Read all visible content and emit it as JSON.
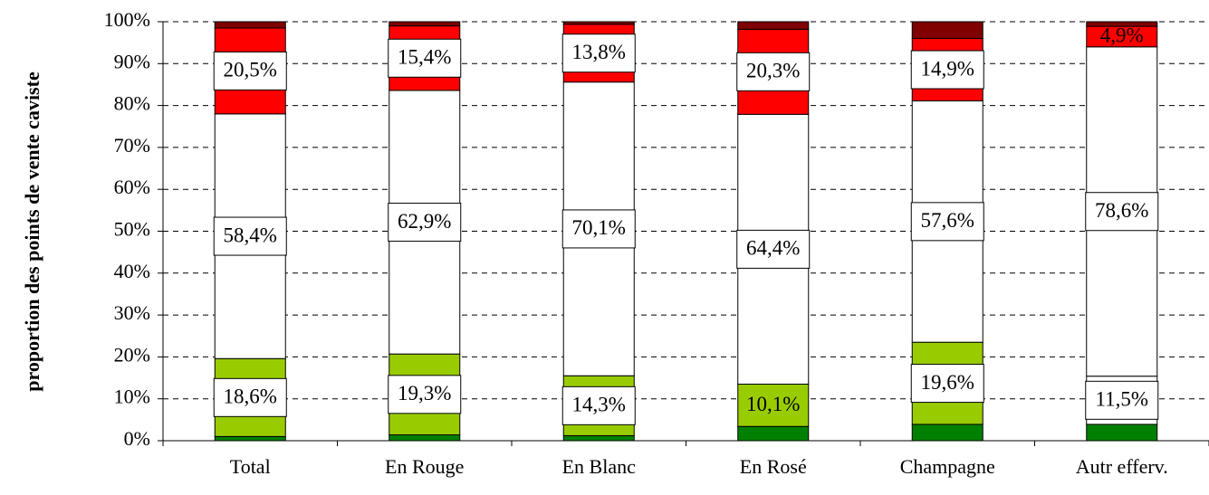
{
  "chart_data": {
    "type": "stacked-bar",
    "y_axis_label": "proportion des points de vente caviste",
    "categories": [
      "Total",
      "En Rouge",
      "En Blanc",
      "En Rosé",
      "Champagne",
      "Autr efferv."
    ],
    "series": [
      {
        "color": "#008000",
        "values": [
          1.0,
          1.4,
          1.2,
          3.4,
          3.9,
          3.9
        ]
      },
      {
        "color": "#99cc00",
        "point_colors": {
          "5": "#ffffff"
        },
        "values": [
          18.6,
          19.3,
          14.3,
          10.1,
          19.6,
          11.5
        ],
        "value_labels": [
          "18,6%",
          "19,3%",
          "14,3%",
          "10,1%",
          "19,6%",
          "11,5%"
        ]
      },
      {
        "color": "#ffffff",
        "values": [
          58.4,
          62.9,
          70.1,
          64.4,
          57.6,
          78.6
        ],
        "value_labels": [
          "58,4%",
          "62,9%",
          "70,1%",
          "64,4%",
          "57,6%",
          "78,6%"
        ]
      },
      {
        "color": "#ff0000",
        "values": [
          20.5,
          15.4,
          13.8,
          20.3,
          14.9,
          4.9
        ],
        "value_labels": [
          "20,5%",
          "15,4%",
          "13,8%",
          "20,3%",
          "14,9%",
          "4,9%"
        ]
      },
      {
        "color": "#800000",
        "values": [
          1.5,
          1.0,
          0.6,
          1.8,
          4.0,
          1.1
        ]
      }
    ],
    "ylim": [
      0,
      100
    ],
    "yticks": [
      {
        "value": 0,
        "label": "0%"
      },
      {
        "value": 10,
        "label": "10%"
      },
      {
        "value": 20,
        "label": "20%"
      },
      {
        "value": 30,
        "label": "30%"
      },
      {
        "value": 40,
        "label": "40%"
      },
      {
        "value": 50,
        "label": "50%"
      },
      {
        "value": 60,
        "label": "60%"
      },
      {
        "value": 70,
        "label": "70%"
      },
      {
        "value": 80,
        "label": "80%"
      },
      {
        "value": 90,
        "label": "90%"
      },
      {
        "value": 100,
        "label": "100%"
      }
    ],
    "grid": true
  }
}
